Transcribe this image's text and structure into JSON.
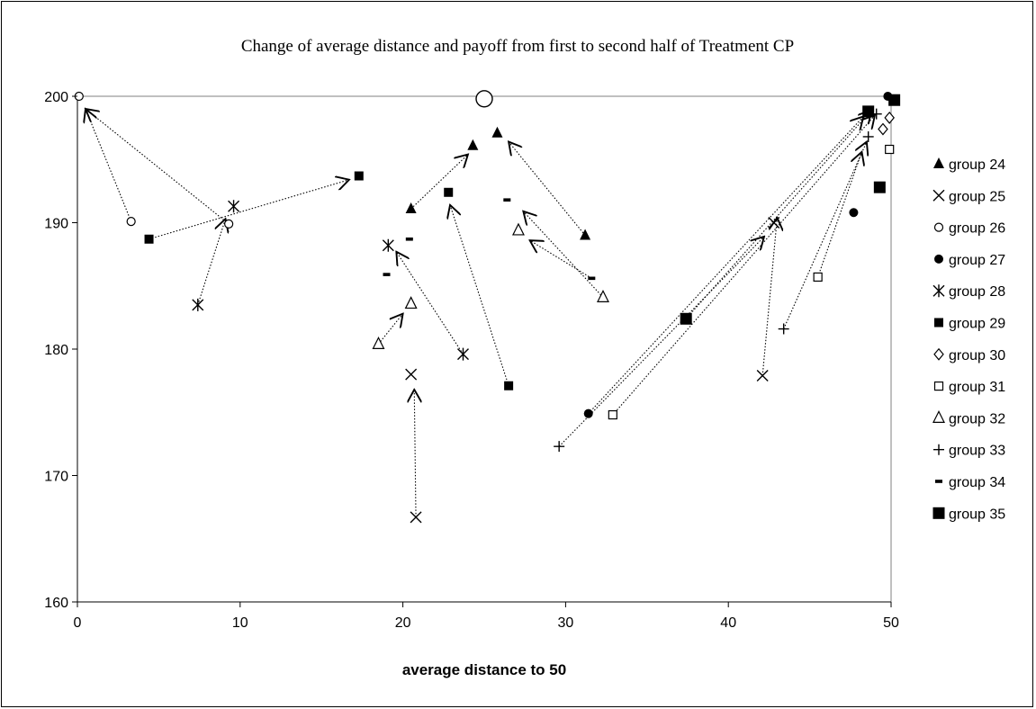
{
  "chart_data": {
    "type": "scatter",
    "title": "Change of average distance and payoff from first to second half of Treatment CP",
    "xlabel": "average distance to 50",
    "ylabel": "",
    "xlim": [
      0,
      50
    ],
    "ylim": [
      160,
      200
    ],
    "x_ticks": [
      "0",
      "10",
      "20",
      "30",
      "40",
      "50"
    ],
    "y_ticks": [
      "160",
      "170",
      "180",
      "190",
      "200"
    ],
    "grid": false,
    "legend_position": "right",
    "series": [
      {
        "name": "group 24",
        "marker": "triangle",
        "points": [
          {
            "x": 31.2,
            "y": 189.0
          },
          {
            "x": 25.8,
            "y": 197.1
          },
          {
            "x": 20.5,
            "y": 191.1
          },
          {
            "x": 24.3,
            "y": 196.1
          }
        ]
      },
      {
        "name": "group 25",
        "marker": "x",
        "points": [
          {
            "x": 20.8,
            "y": 166.7
          },
          {
            "x": 20.5,
            "y": 178.0
          },
          {
            "x": 42.1,
            "y": 177.9
          },
          {
            "x": 42.8,
            "y": 190.0
          }
        ]
      },
      {
        "name": "group 26",
        "marker": "open-circle",
        "points": [
          {
            "x": 3.3,
            "y": 190.1
          },
          {
            "x": 0.1,
            "y": 200.0
          },
          {
            "x": 9.3,
            "y": 189.9
          },
          {
            "x": 25.0,
            "y": 199.8
          }
        ]
      },
      {
        "name": "group 27",
        "marker": "filled-circle",
        "points": [
          {
            "x": 31.4,
            "y": 174.9
          },
          {
            "x": 49.8,
            "y": 200.0
          },
          {
            "x": 47.7,
            "y": 190.8
          }
        ]
      },
      {
        "name": "group 28",
        "marker": "asterisk",
        "points": [
          {
            "x": 7.4,
            "y": 183.5
          },
          {
            "x": 9.6,
            "y": 191.3
          },
          {
            "x": 23.7,
            "y": 179.6
          },
          {
            "x": 19.1,
            "y": 188.2
          }
        ]
      },
      {
        "name": "group 29",
        "marker": "filled-square",
        "points": [
          {
            "x": 4.4,
            "y": 188.7
          },
          {
            "x": 17.3,
            "y": 193.7
          },
          {
            "x": 26.5,
            "y": 177.1
          },
          {
            "x": 22.8,
            "y": 192.4
          }
        ]
      },
      {
        "name": "group 30",
        "marker": "diamond",
        "points": [
          {
            "x": 49.5,
            "y": 197.4
          },
          {
            "x": 49.9,
            "y": 198.3
          }
        ]
      },
      {
        "name": "group 31",
        "marker": "open-square",
        "points": [
          {
            "x": 32.9,
            "y": 174.8
          },
          {
            "x": 49.9,
            "y": 195.8
          },
          {
            "x": 45.5,
            "y": 185.7
          }
        ]
      },
      {
        "name": "group 32",
        "marker": "open-triangle",
        "points": [
          {
            "x": 18.5,
            "y": 180.4
          },
          {
            "x": 20.5,
            "y": 183.6
          },
          {
            "x": 32.3,
            "y": 184.1
          },
          {
            "x": 27.1,
            "y": 189.4
          }
        ]
      },
      {
        "name": "group 33",
        "marker": "plus",
        "points": [
          {
            "x": 29.6,
            "y": 172.3
          },
          {
            "x": 43.4,
            "y": 181.6
          },
          {
            "x": 48.6,
            "y": 196.8
          },
          {
            "x": 49.1,
            "y": 198.6
          }
        ]
      },
      {
        "name": "group 34",
        "marker": "dash",
        "points": [
          {
            "x": 19.0,
            "y": 185.9
          },
          {
            "x": 20.4,
            "y": 188.7
          },
          {
            "x": 31.6,
            "y": 185.6
          },
          {
            "x": 26.4,
            "y": 191.8
          }
        ]
      },
      {
        "name": "group 35",
        "marker": "big-filled-square",
        "points": [
          {
            "x": 37.4,
            "y": 182.4
          },
          {
            "x": 49.3,
            "y": 192.8
          },
          {
            "x": 48.6,
            "y": 198.8
          },
          {
            "x": 50.2,
            "y": 199.7
          }
        ]
      }
    ],
    "arrows": [
      {
        "from": [
          31.2,
          189.0
        ],
        "to": [
          26.5,
          196.4
        ]
      },
      {
        "from": [
          20.5,
          191.1
        ],
        "to": [
          24.0,
          195.4
        ]
      },
      {
        "from": [
          20.8,
          166.7
        ],
        "to": [
          20.7,
          176.8
        ]
      },
      {
        "from": [
          42.1,
          177.9
        ],
        "to": [
          43.0,
          190.4
        ]
      },
      {
        "from": [
          3.3,
          190.1
        ],
        "to": [
          0.5,
          199.0
        ]
      },
      {
        "from": [
          9.3,
          189.9
        ],
        "to": [
          0.5,
          199.0
        ]
      },
      {
        "from": [
          31.4,
          174.9
        ],
        "to": [
          48.3,
          198.4
        ]
      },
      {
        "from": [
          7.4,
          183.5
        ],
        "to": [
          9.1,
          190.3
        ]
      },
      {
        "from": [
          23.7,
          179.6
        ],
        "to": [
          19.6,
          187.7
        ]
      },
      {
        "from": [
          4.4,
          188.7
        ],
        "to": [
          16.7,
          193.4
        ]
      },
      {
        "from": [
          26.5,
          177.1
        ],
        "to": [
          22.9,
          191.4
        ]
      },
      {
        "from": [
          32.9,
          174.8
        ],
        "to": [
          49.0,
          198.5
        ]
      },
      {
        "from": [
          18.5,
          180.4
        ],
        "to": [
          20.0,
          182.8
        ]
      },
      {
        "from": [
          32.3,
          184.1
        ],
        "to": [
          27.4,
          190.9
        ]
      },
      {
        "from": [
          31.6,
          185.6
        ],
        "to": [
          27.8,
          188.6
        ]
      },
      {
        "from": [
          29.6,
          172.3
        ],
        "to": [
          42.2,
          188.9
        ]
      },
      {
        "from": [
          43.4,
          181.6
        ],
        "to": [
          48.5,
          196.4
        ]
      },
      {
        "from": [
          45.5,
          185.7
        ],
        "to": [
          48.2,
          195.6
        ]
      },
      {
        "from": [
          37.4,
          182.4
        ],
        "to": [
          48.8,
          198.9
        ]
      }
    ]
  }
}
